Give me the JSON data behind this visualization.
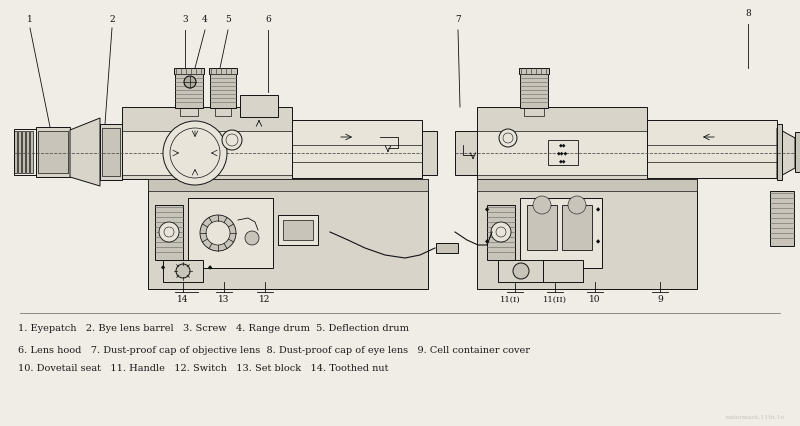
{
  "background_color": "#f0ede6",
  "fig_width": 8.0,
  "fig_height": 4.26,
  "dpi": 100,
  "legend_lines": [
    "1. Eyepatch   2. Bye lens barrel   3. Screw   4. Range drum  5. Deflection drum",
    "6. Lens hood   7. Dust-proof cap of objective lens  8. Dust-proof cap of eye lens   9. Cell container cover",
    "10. Dovetail seat   11. Handle   12. Switch   13. Set block   14. Toothed nut"
  ],
  "legend_fontsize": 7.0,
  "legend_color": "#1a1a1a"
}
